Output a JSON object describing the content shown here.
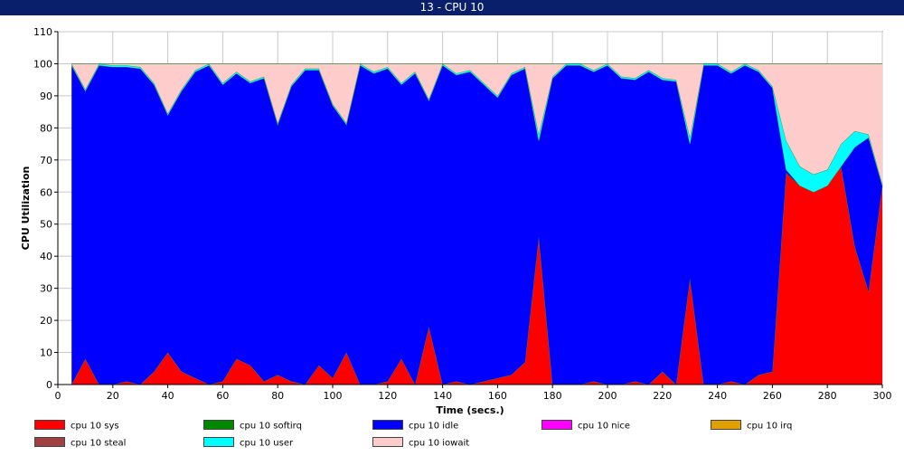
{
  "window": {
    "title": "13 -  CPU 10"
  },
  "chart_data": {
    "type": "area",
    "stacked": true,
    "title": "13 -  CPU 10",
    "xlabel": "Time (secs.)",
    "ylabel": "CPU Utilization",
    "xlim": [
      0,
      300
    ],
    "ylim": [
      0,
      110
    ],
    "x_ticks": [
      "0",
      "20",
      "40",
      "60",
      "80",
      "100",
      "120",
      "140",
      "160",
      "180",
      "200",
      "220",
      "240",
      "260",
      "280",
      "300"
    ],
    "y_ticks": [
      "0",
      "10",
      "20",
      "30",
      "40",
      "50",
      "60",
      "70",
      "80",
      "90",
      "100",
      "110"
    ],
    "grid": true,
    "legend_position": "bottom",
    "x": [
      5,
      10,
      15,
      20,
      25,
      30,
      35,
      40,
      45,
      50,
      55,
      60,
      65,
      70,
      75,
      80,
      85,
      90,
      95,
      100,
      105,
      110,
      115,
      120,
      125,
      130,
      135,
      140,
      145,
      150,
      155,
      160,
      165,
      170,
      175,
      180,
      185,
      190,
      195,
      200,
      205,
      210,
      215,
      220,
      225,
      230,
      235,
      240,
      245,
      250,
      255,
      260,
      265,
      270,
      275,
      280,
      285,
      290,
      295,
      300
    ],
    "series": [
      {
        "name": "cpu 10 sys",
        "color": "#ff0000",
        "values": [
          0,
          8,
          0,
          0,
          1,
          0,
          4,
          10,
          4,
          2,
          0,
          1,
          8,
          6,
          1,
          3,
          1,
          0,
          6,
          2,
          10,
          0,
          0,
          1,
          8,
          0,
          18,
          0,
          1,
          0,
          1,
          2,
          3,
          7,
          46,
          0,
          0,
          0,
          1,
          0,
          0,
          1,
          0,
          4,
          0,
          33,
          0,
          0,
          1,
          0,
          3,
          4,
          66,
          62,
          60,
          62,
          68,
          43,
          29,
          62
        ]
      },
      {
        "name": "cpu 10 softirq",
        "color": "#008800",
        "values": [
          0,
          0,
          0,
          0,
          0,
          0,
          0,
          0,
          0,
          0,
          0,
          0,
          0,
          0,
          0,
          0,
          0,
          0,
          0,
          0,
          0,
          0,
          0,
          0,
          0,
          0,
          0,
          0,
          0,
          0,
          0,
          0,
          0,
          0,
          0,
          0,
          0,
          0,
          0,
          0,
          0,
          0,
          0,
          0,
          0,
          0,
          0,
          0,
          0,
          0,
          0,
          0,
          0,
          0,
          0,
          0,
          0,
          0,
          0,
          0
        ]
      },
      {
        "name": "cpu 10 idle",
        "color": "#0000ff",
        "values": [
          99.5,
          83.5,
          99.5,
          99,
          98,
          98.5,
          89.5,
          74,
          87.5,
          95.5,
          99.5,
          92.5,
          89,
          88,
          94.5,
          78,
          92,
          98,
          92,
          85,
          71,
          99.5,
          97,
          97.5,
          85.5,
          97,
          70.5,
          99.5,
          95.5,
          97.5,
          92.5,
          87.5,
          93.5,
          91.5,
          30,
          95.5,
          99.5,
          99.5,
          96.5,
          99.5,
          95.5,
          94,
          97.5,
          91,
          94.5,
          42,
          99.5,
          99.5,
          96,
          99.5,
          94.5,
          88.5,
          1,
          0,
          0,
          0,
          0,
          31,
          48,
          0
        ]
      },
      {
        "name": "cpu 10 nice",
        "color": "#ff00ff",
        "values": [
          0,
          0,
          0,
          0,
          0,
          0,
          0,
          0,
          0,
          0,
          0,
          0,
          0,
          0,
          0,
          0,
          0,
          0,
          0,
          0,
          0,
          0,
          0,
          0,
          0,
          0,
          0,
          0,
          0,
          0,
          0,
          0,
          0,
          0,
          0,
          0,
          0,
          0,
          0,
          0,
          0,
          0,
          0,
          0,
          0,
          0,
          0,
          0,
          0,
          0,
          0,
          0,
          0,
          0,
          0,
          0,
          0,
          0,
          0,
          0
        ]
      },
      {
        "name": "cpu 10 irq",
        "color": "#e0a000",
        "values": [
          0,
          0,
          0,
          0,
          0,
          0,
          0,
          0,
          0,
          0,
          0,
          0,
          0,
          0,
          0,
          0,
          0,
          0,
          0,
          0,
          0,
          0,
          0,
          0,
          0,
          0,
          0,
          0,
          0,
          0,
          0,
          0,
          0,
          0,
          0,
          0,
          0,
          0,
          0,
          0,
          0,
          0,
          0,
          0,
          0,
          0,
          0,
          0,
          0,
          0,
          0,
          0,
          0,
          0,
          0,
          0,
          0,
          0,
          0,
          0
        ]
      },
      {
        "name": "cpu 10 steal",
        "color": "#a04040",
        "values": [
          0,
          0,
          0,
          0,
          0,
          0,
          0,
          0,
          0,
          0,
          0,
          0,
          0,
          0,
          0,
          0,
          0,
          0,
          0,
          0,
          0,
          0,
          0,
          0,
          0,
          0,
          0,
          0,
          0,
          0,
          0,
          0,
          0,
          0,
          0,
          0,
          0,
          0,
          0,
          0,
          0,
          0,
          0,
          0,
          0,
          0,
          0,
          0,
          0,
          0,
          0,
          0,
          0,
          0,
          0,
          0,
          0,
          0,
          0,
          0
        ]
      },
      {
        "name": "cpu 10 user",
        "color": "#00ffff",
        "values": [
          0.5,
          0.5,
          0.5,
          0.5,
          0.5,
          0.5,
          0.5,
          0.5,
          0.5,
          0.5,
          0.5,
          0.5,
          0.5,
          0.5,
          0.5,
          0.5,
          0.5,
          0.5,
          0.5,
          0.5,
          0.5,
          0.5,
          0.5,
          0.5,
          0.5,
          0.5,
          0.5,
          0.5,
          0.5,
          0.5,
          0.5,
          0.5,
          0.5,
          0.5,
          2,
          0.5,
          0.5,
          0.5,
          0.5,
          0.5,
          0.5,
          0.5,
          0.5,
          0.5,
          0.5,
          2,
          0.5,
          0.5,
          0.5,
          0.5,
          0.5,
          0.5,
          9,
          6,
          5.5,
          5,
          7,
          5,
          1,
          0.5
        ]
      },
      {
        "name": "cpu 10 iowait",
        "color": "#ffcccc",
        "values": [
          0,
          8,
          0,
          0.5,
          0.5,
          1,
          6,
          15.5,
          8,
          2,
          0,
          6,
          2.5,
          5.5,
          4,
          18.5,
          6.5,
          1.5,
          1.5,
          12.5,
          18.5,
          0,
          2.5,
          1,
          6,
          2.5,
          11,
          0,
          3,
          2,
          6,
          10,
          3,
          1,
          22,
          4,
          0,
          0,
          2,
          0,
          4,
          4.5,
          2,
          4.5,
          5,
          23,
          0,
          0,
          2.5,
          0,
          2,
          7,
          24,
          32,
          34.5,
          33,
          25,
          21,
          22,
          37.5
        ]
      }
    ]
  },
  "legend": [
    {
      "label": "cpu 10 sys",
      "color": "#ff0000"
    },
    {
      "label": "cpu 10 softirq",
      "color": "#008800"
    },
    {
      "label": "cpu 10 idle",
      "color": "#0000ff"
    },
    {
      "label": "cpu 10 nice",
      "color": "#ff00ff"
    },
    {
      "label": "cpu 10 irq",
      "color": "#e0a000"
    },
    {
      "label": "cpu 10 steal",
      "color": "#a04040"
    },
    {
      "label": "cpu 10 user",
      "color": "#00ffff"
    },
    {
      "label": "cpu 10 iowait",
      "color": "#ffcccc"
    }
  ]
}
